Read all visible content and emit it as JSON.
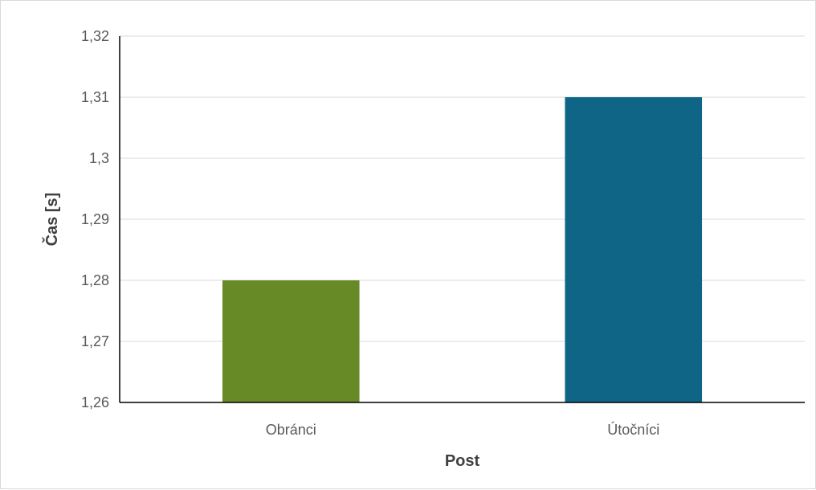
{
  "chart_data": {
    "type": "bar",
    "title": "",
    "xlabel": "Post",
    "ylabel": "Čas [s]",
    "categories": [
      "Obránci",
      "Útočníci"
    ],
    "values": [
      1.28,
      1.31
    ],
    "colors": [
      "#688a26",
      "#0e6586"
    ],
    "ylim": [
      1.26,
      1.32
    ],
    "yticks": [
      1.26,
      1.27,
      1.28,
      1.29,
      1.3,
      1.31,
      1.32
    ],
    "ytick_labels": [
      "1,26",
      "1,27",
      "1,28",
      "1,29",
      "1,3",
      "1,31",
      "1,32"
    ],
    "grid": true,
    "legend": "none"
  },
  "style": {
    "gridline_color": "#d9d9d9",
    "axis_color": "#000000"
  }
}
